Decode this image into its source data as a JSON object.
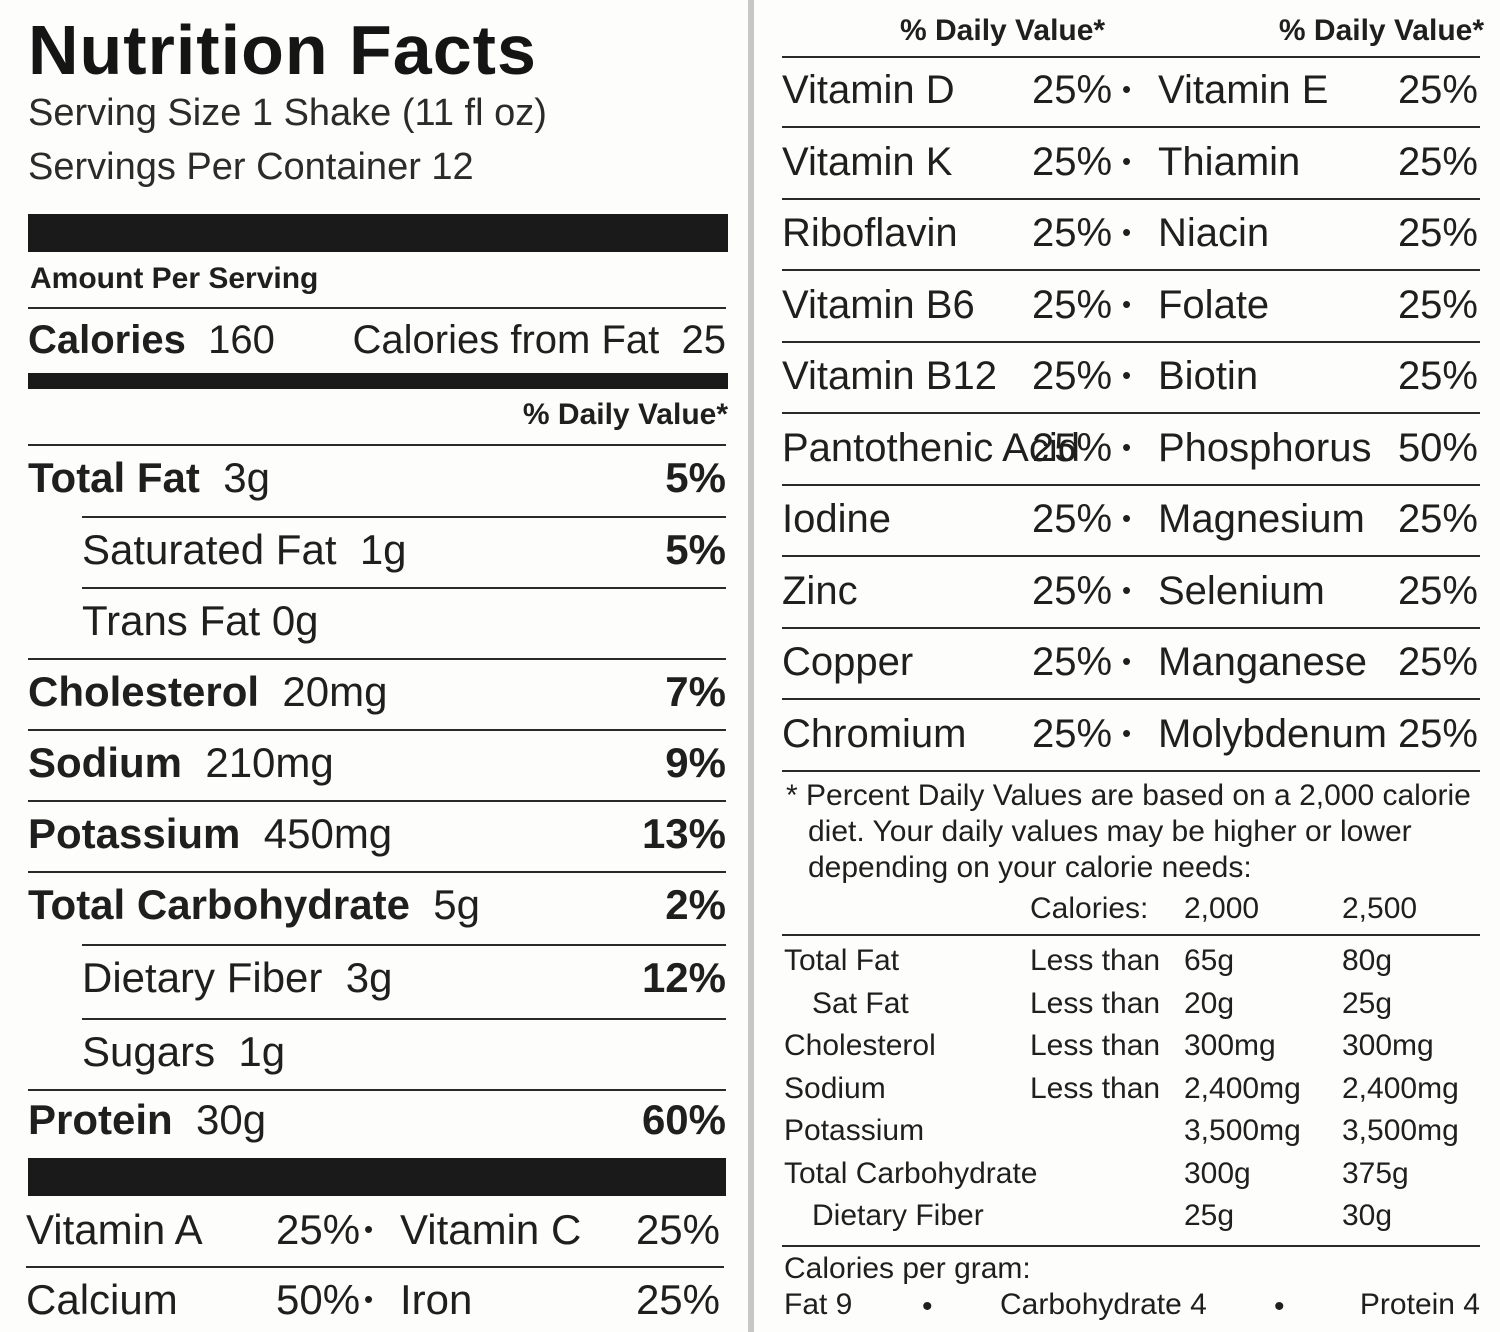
{
  "title": "Nutrition Facts",
  "serving_size": "Serving Size 1 Shake (11 fl oz)",
  "servings_per_container": "Servings Per Container 12",
  "amount_per_serving": "Amount Per Serving",
  "calories": {
    "label": "Calories",
    "value": "160",
    "from_fat_label": "Calories from Fat",
    "from_fat_value": "25"
  },
  "daily_value_header": "% Daily Value*",
  "nutrients": [
    {
      "label": "Total Fat",
      "amount": "3g",
      "pct": "5%"
    },
    {
      "label": "Saturated Fat",
      "amount": "1g",
      "pct": "5%"
    },
    {
      "label": "Trans Fat",
      "amount": "0g",
      "pct": ""
    },
    {
      "label": "Cholesterol",
      "amount": "20mg",
      "pct": "7%"
    },
    {
      "label": "Sodium",
      "amount": "210mg",
      "pct": "9%"
    },
    {
      "label": "Potassium",
      "amount": "450mg",
      "pct": "13%"
    },
    {
      "label": "Total Carbohydrate",
      "amount": "5g",
      "pct": "2%"
    },
    {
      "label": "Dietary Fiber",
      "amount": "3g",
      "pct": "12%"
    },
    {
      "label": "Sugars",
      "amount": "1g",
      "pct": ""
    },
    {
      "label": "Protein",
      "amount": "30g",
      "pct": "60%"
    }
  ],
  "bullet": "•",
  "left_vitamins": [
    {
      "a": "Vitamin A",
      "a_pct": "25%",
      "b": "Vitamin C",
      "b_pct": "25%"
    },
    {
      "a": "Calcium",
      "a_pct": "50%",
      "b": "Iron",
      "b_pct": "25%"
    }
  ],
  "right_vitamins": [
    {
      "a": "Vitamin D",
      "a_pct": "25%",
      "b": "Vitamin E",
      "b_pct": "25%"
    },
    {
      "a": "Vitamin K",
      "a_pct": "25%",
      "b": "Thiamin",
      "b_pct": "25%"
    },
    {
      "a": "Riboflavin",
      "a_pct": "25%",
      "b": "Niacin",
      "b_pct": "25%"
    },
    {
      "a": "Vitamin B6",
      "a_pct": "25%",
      "b": "Folate",
      "b_pct": "25%"
    },
    {
      "a": "Vitamin B12",
      "a_pct": "25%",
      "b": "Biotin",
      "b_pct": "25%"
    },
    {
      "a": "Pantothenic Acid",
      "a_pct": "25%",
      "b": "Phosphorus",
      "b_pct": "50%"
    },
    {
      "a": "Iodine",
      "a_pct": "25%",
      "b": "Magnesium",
      "b_pct": "25%"
    },
    {
      "a": "Zinc",
      "a_pct": "25%",
      "b": "Selenium",
      "b_pct": "25%"
    },
    {
      "a": "Copper",
      "a_pct": "25%",
      "b": "Manganese",
      "b_pct": "25%"
    },
    {
      "a": "Chromium",
      "a_pct": "25%",
      "b": "Molybdenum",
      "b_pct": "25%"
    }
  ],
  "footnote": {
    "line1": "* Percent Daily Values are based on a 2,000 calorie",
    "line2": "diet. Your daily values may be higher or lower",
    "line3": "depending on your calorie needs:"
  },
  "ref_table": {
    "header": {
      "label": "Calories:",
      "c1": "2,000",
      "c2": "2,500"
    },
    "rows": [
      {
        "name": "Total Fat",
        "qual": "Less than",
        "v1": "65g",
        "v2": "80g"
      },
      {
        "name": "Sat Fat",
        "qual": "Less than",
        "v1": "20g",
        "v2": "25g"
      },
      {
        "name": "Cholesterol",
        "qual": "Less than",
        "v1": "300mg",
        "v2": "300mg"
      },
      {
        "name": "Sodium",
        "qual": "Less than",
        "v1": "2,400mg",
        "v2": "2,400mg"
      },
      {
        "name": "Potassium",
        "qual": "",
        "v1": "3,500mg",
        "v2": "3,500mg"
      },
      {
        "name": "Total Carbohydrate",
        "qual": "",
        "v1": "300g",
        "v2": "375g"
      },
      {
        "name": "Dietary Fiber",
        "qual": "",
        "v1": "25g",
        "v2": "30g"
      }
    ]
  },
  "calories_per_gram": {
    "label": "Calories per gram:",
    "fat": "Fat 9",
    "carb": "Carbohydrate 4",
    "protein": "Protein 4"
  }
}
